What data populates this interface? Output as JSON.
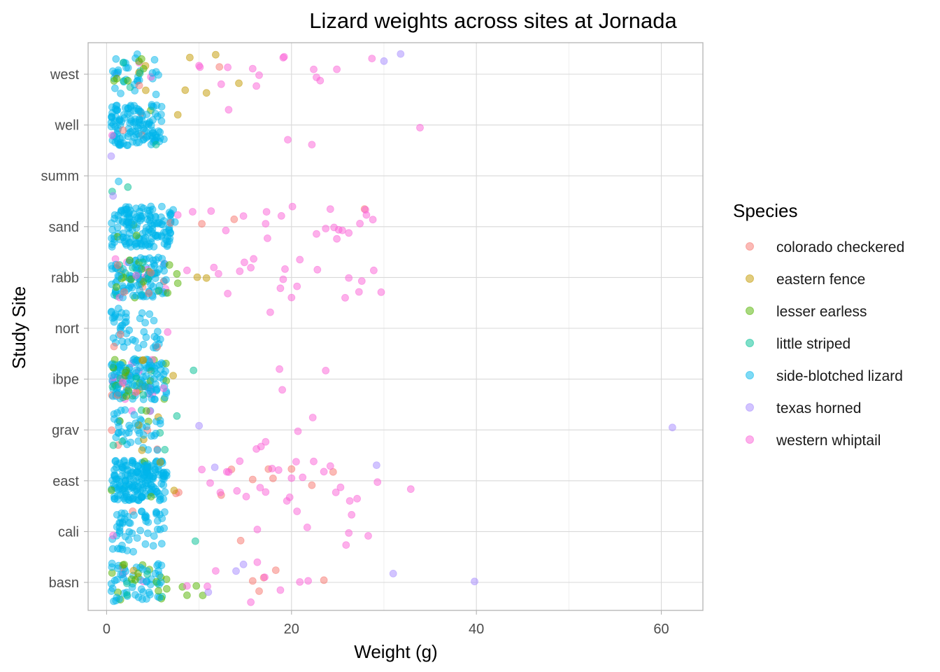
{
  "chart_data": {
    "type": "scatter",
    "title": "Lizard weights across sites at Jornada",
    "xlabel": "Weight (g)",
    "ylabel": "Study Site",
    "xlim": [
      -2,
      64.5
    ],
    "xticks": [
      0,
      20,
      40,
      60
    ],
    "categories": [
      "basn",
      "cali",
      "east",
      "grav",
      "ibpe",
      "nort",
      "rabb",
      "sand",
      "summ",
      "well",
      "west"
    ],
    "grid": true,
    "jitter": true,
    "point_alpha": 0.5,
    "legend": {
      "title": "Species",
      "position": "right"
    },
    "series": [
      {
        "name": "colorado checkered",
        "color": "#F8766D",
        "points": [
          [
            "west",
            12.2
          ],
          [
            "sand",
            6.9
          ],
          [
            "sand",
            10.3
          ],
          [
            "sand",
            13.8
          ],
          [
            "sand",
            27.9
          ],
          [
            "rabb",
            1.2
          ],
          [
            "nort",
            0.8
          ],
          [
            "nort",
            1.5
          ],
          [
            "east",
            7.8
          ],
          [
            "east",
            7.5
          ],
          [
            "east",
            12.4
          ],
          [
            "east",
            13.5
          ],
          [
            "east",
            17.5
          ],
          [
            "east",
            18.0
          ],
          [
            "east",
            20.0
          ],
          [
            "east",
            22.2
          ],
          [
            "east",
            15.8
          ],
          [
            "east",
            24.5
          ],
          [
            "cali",
            14.5
          ],
          [
            "basn",
            16.5
          ],
          [
            "basn",
            23.5
          ],
          [
            "basn",
            17.0
          ],
          [
            "basn",
            15.8
          ],
          [
            "basn",
            18.3
          ]
        ]
      },
      {
        "name": "eastern fence",
        "color": "#C49A00",
        "points": [
          [
            "west",
            3.5
          ],
          [
            "west",
            4.2
          ],
          [
            "west",
            8.5
          ],
          [
            "west",
            9.0
          ],
          [
            "west",
            11.8
          ],
          [
            "west",
            14.3
          ],
          [
            "west",
            10.8
          ],
          [
            "well",
            7.7
          ],
          [
            "rabb",
            9.8
          ],
          [
            "rabb",
            10.8
          ],
          [
            "ibpe",
            7.2
          ],
          [
            "east",
            7.3
          ],
          [
            "east",
            5.8
          ]
        ]
      },
      {
        "name": "lesser earless",
        "color": "#53B400",
        "points": [
          [
            "west",
            0.8
          ],
          [
            "west",
            1.1
          ],
          [
            "west",
            4.0
          ],
          [
            "west",
            3.5
          ],
          [
            "rabb",
            6.8
          ],
          [
            "rabb",
            7.6
          ],
          [
            "rabb",
            6.6
          ],
          [
            "rabb",
            7.7
          ],
          [
            "rabb",
            2.5
          ],
          [
            "grav",
            4.3
          ],
          [
            "basn",
            6.5
          ],
          [
            "basn",
            8.2
          ],
          [
            "basn",
            9.7
          ],
          [
            "basn",
            10.4
          ],
          [
            "basn",
            8.7
          ],
          [
            "basn",
            2.7
          ],
          [
            "basn",
            5.6
          ],
          [
            "basn",
            3.1
          ],
          [
            "basn",
            1.9
          ]
        ]
      },
      {
        "name": "little striped",
        "color": "#00C094",
        "points": [
          [
            "west",
            1.8
          ],
          [
            "west",
            3.6
          ],
          [
            "summ",
            0.6
          ],
          [
            "summ",
            2.3
          ],
          [
            "ibpe",
            9.4
          ],
          [
            "ibpe",
            3.2
          ],
          [
            "ibpe",
            4.8
          ],
          [
            "grav",
            7.6
          ],
          [
            "grav",
            6.3
          ],
          [
            "cali",
            9.6
          ],
          [
            "basn",
            2.2
          ],
          [
            "basn",
            4.4
          ]
        ]
      },
      {
        "name": "side-blotched lizard",
        "color": "#00B6EB",
        "points": [
          [
            "west",
            5.6
          ],
          [
            "well",
            5.8
          ],
          [
            "well",
            6.2
          ],
          [
            "summ",
            1.3
          ],
          [
            "ibpe",
            6.3
          ],
          [
            "nort",
            5.3
          ],
          [
            "east",
            6.2
          ],
          [
            "cali",
            6.0
          ],
          [
            "basn",
            5.6
          ],
          [
            "sand",
            7.2
          ],
          [
            "sand",
            7.4
          ],
          [
            "grav",
            5.8
          ],
          [
            "rabb",
            6.0
          ],
          [
            "rabb",
            5.6
          ]
        ]
      },
      {
        "name": "texas horned",
        "color": "#A58AFF",
        "points": [
          [
            "west",
            30.0
          ],
          [
            "west",
            31.8
          ],
          [
            "summ",
            0.7
          ],
          [
            "summ",
            0.5
          ],
          [
            "grav",
            10.0
          ],
          [
            "grav",
            61.2
          ],
          [
            "east",
            11.7
          ],
          [
            "east",
            29.2
          ],
          [
            "basn",
            11.0
          ],
          [
            "basn",
            14.0
          ],
          [
            "basn",
            14.8
          ],
          [
            "basn",
            31.0
          ],
          [
            "basn",
            39.8
          ]
        ]
      },
      {
        "name": "western whiptail",
        "color": "#FB61D7",
        "points": [
          [
            "west",
            10.0
          ],
          [
            "west",
            12.4
          ],
          [
            "west",
            13.1
          ],
          [
            "west",
            10.1
          ],
          [
            "west",
            16.2
          ],
          [
            "west",
            16.5
          ],
          [
            "west",
            19.2
          ],
          [
            "west",
            19.1
          ],
          [
            "west",
            15.8
          ],
          [
            "west",
            22.4
          ],
          [
            "west",
            22.7
          ],
          [
            "west",
            23.1
          ],
          [
            "west",
            24.9
          ],
          [
            "west",
            28.7
          ],
          [
            "well",
            0.6
          ],
          [
            "well",
            13.2
          ],
          [
            "well",
            19.6
          ],
          [
            "well",
            22.2
          ],
          [
            "well",
            33.9
          ],
          [
            "sand",
            7.7
          ],
          [
            "sand",
            9.3
          ],
          [
            "sand",
            11.3
          ],
          [
            "sand",
            12.9
          ],
          [
            "sand",
            14.8
          ],
          [
            "sand",
            17.2
          ],
          [
            "sand",
            17.3
          ],
          [
            "sand",
            17.4
          ],
          [
            "sand",
            18.9
          ],
          [
            "sand",
            20.1
          ],
          [
            "sand",
            22.7
          ],
          [
            "sand",
            23.7
          ],
          [
            "sand",
            24.2
          ],
          [
            "sand",
            24.6
          ],
          [
            "sand",
            24.9
          ],
          [
            "sand",
            25.1
          ],
          [
            "sand",
            25.5
          ],
          [
            "sand",
            26.2
          ],
          [
            "sand",
            27.4
          ],
          [
            "sand",
            28.0
          ],
          [
            "sand",
            28.1
          ],
          [
            "sand",
            28.8
          ],
          [
            "rabb",
            8.7
          ],
          [
            "rabb",
            11.6
          ],
          [
            "rabb",
            12.1
          ],
          [
            "rabb",
            13.1
          ],
          [
            "rabb",
            14.4
          ],
          [
            "rabb",
            14.9
          ],
          [
            "rabb",
            15.9
          ],
          [
            "rabb",
            15.6
          ],
          [
            "rabb",
            18.8
          ],
          [
            "rabb",
            19.3
          ],
          [
            "rabb",
            19.1
          ],
          [
            "rabb",
            20.6
          ],
          [
            "rabb",
            20.9
          ],
          [
            "rabb",
            20.0
          ],
          [
            "rabb",
            22.8
          ],
          [
            "rabb",
            25.8
          ],
          [
            "rabb",
            26.2
          ],
          [
            "rabb",
            27.6
          ],
          [
            "rabb",
            27.3
          ],
          [
            "rabb",
            29.7
          ],
          [
            "rabb",
            28.9
          ],
          [
            "rabb",
            3.2
          ],
          [
            "nort",
            6.6
          ],
          [
            "nort",
            17.7
          ],
          [
            "ibpe",
            18.7
          ],
          [
            "ibpe",
            19.0
          ],
          [
            "ibpe",
            23.7
          ],
          [
            "grav",
            16.2
          ],
          [
            "grav",
            16.7
          ],
          [
            "grav",
            17.2
          ],
          [
            "grav",
            20.7
          ],
          [
            "grav",
            22.3
          ],
          [
            "east",
            10.3
          ],
          [
            "east",
            11.2
          ],
          [
            "east",
            12.3
          ],
          [
            "east",
            13.0
          ],
          [
            "east",
            14.1
          ],
          [
            "east",
            14.4
          ],
          [
            "east",
            15.1
          ],
          [
            "east",
            16.6
          ],
          [
            "east",
            17.2
          ],
          [
            "east",
            18.6
          ],
          [
            "east",
            19.5
          ],
          [
            "east",
            19.8
          ],
          [
            "east",
            20.0
          ],
          [
            "east",
            20.5
          ],
          [
            "east",
            21.2
          ],
          [
            "east",
            22.4
          ],
          [
            "east",
            23.5
          ],
          [
            "east",
            24.2
          ],
          [
            "east",
            24.8
          ],
          [
            "east",
            25.3
          ],
          [
            "east",
            26.3
          ],
          [
            "east",
            27.1
          ],
          [
            "east",
            29.3
          ],
          [
            "east",
            32.9
          ],
          [
            "east",
            13.2
          ],
          [
            "east",
            17.9
          ],
          [
            "cali",
            0.7
          ],
          [
            "cali",
            16.3
          ],
          [
            "cali",
            20.6
          ],
          [
            "cali",
            21.7
          ],
          [
            "cali",
            25.9
          ],
          [
            "cali",
            26.2
          ],
          [
            "cali",
            26.5
          ],
          [
            "cali",
            28.3
          ],
          [
            "basn",
            8.7
          ],
          [
            "basn",
            11.8
          ],
          [
            "basn",
            15.6
          ],
          [
            "basn",
            16.3
          ],
          [
            "basn",
            17.1
          ],
          [
            "basn",
            18.8
          ],
          [
            "basn",
            20.9
          ],
          [
            "basn",
            21.8
          ],
          [
            "basn",
            10.9
          ]
        ]
      }
    ],
    "dense_clusters": [
      {
        "site": "west",
        "n": 38,
        "xmin": 0.5,
        "xmax": 5.5
      },
      {
        "site": "well",
        "n": 130,
        "xmin": 0.5,
        "xmax": 6.0
      },
      {
        "site": "sand",
        "n": 150,
        "xmin": 0.5,
        "xmax": 7.0
      },
      {
        "site": "rabb",
        "n": 130,
        "xmin": 0.5,
        "xmax": 6.5
      },
      {
        "site": "nort",
        "n": 45,
        "xmin": 0.5,
        "xmax": 6.0
      },
      {
        "site": "ibpe",
        "n": 160,
        "xmin": 0.5,
        "xmax": 6.5
      },
      {
        "site": "grav",
        "n": 55,
        "xmin": 0.5,
        "xmax": 6.0
      },
      {
        "site": "east",
        "n": 190,
        "xmin": 0.5,
        "xmax": 6.5
      },
      {
        "site": "cali",
        "n": 55,
        "xmin": 0.5,
        "xmax": 6.5
      },
      {
        "site": "basn",
        "n": 70,
        "xmin": 0.5,
        "xmax": 6.5
      }
    ]
  }
}
